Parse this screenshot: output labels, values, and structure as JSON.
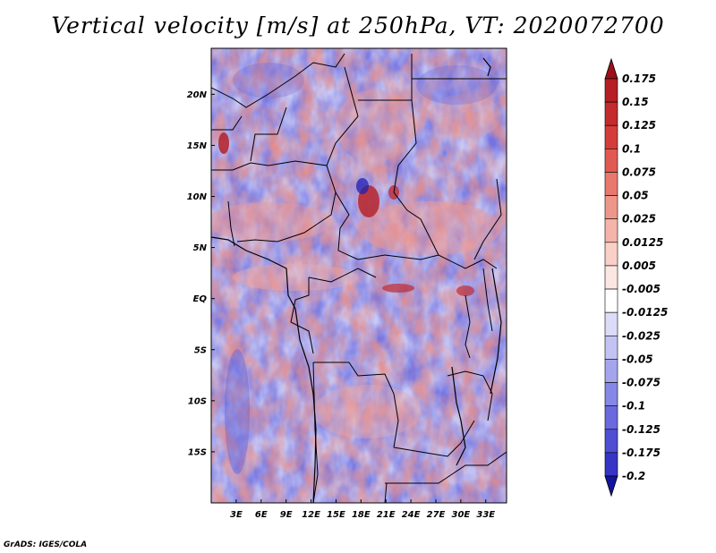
{
  "title": "Vertical velocity [m/s] at 250hPa, VT: 2020072700",
  "credit": "GrADS: IGES/COLA",
  "map": {
    "lon_range": [
      0,
      35.5
    ],
    "lat_range": [
      -20,
      24.5
    ],
    "lon_ticks": [
      {
        "value": 3,
        "label": "3E"
      },
      {
        "value": 6,
        "label": "6E"
      },
      {
        "value": 9,
        "label": "9E"
      },
      {
        "value": 12,
        "label": "12E"
      },
      {
        "value": 15,
        "label": "15E"
      },
      {
        "value": 18,
        "label": "18E"
      },
      {
        "value": 21,
        "label": "21E"
      },
      {
        "value": 24,
        "label": "24E"
      },
      {
        "value": 27,
        "label": "27E"
      },
      {
        "value": 30,
        "label": "30E"
      },
      {
        "value": 33,
        "label": "33E"
      }
    ],
    "lat_ticks": [
      {
        "value": 20,
        "label": "20N"
      },
      {
        "value": 15,
        "label": "15N"
      },
      {
        "value": 10,
        "label": "10N"
      },
      {
        "value": 5,
        "label": "5N"
      },
      {
        "value": 0,
        "label": "EQ"
      },
      {
        "value": -5,
        "label": "5S"
      },
      {
        "value": -10,
        "label": "10S"
      },
      {
        "value": -15,
        "label": "15S"
      }
    ]
  },
  "colorbar": {
    "levels": [
      {
        "label": "0.175",
        "color": "#b41e24"
      },
      {
        "label": "0.15",
        "color": "#c32b2e"
      },
      {
        "label": "0.125",
        "color": "#d43c3a"
      },
      {
        "label": "0.1",
        "color": "#e05a52"
      },
      {
        "label": "0.075",
        "color": "#e8786e"
      },
      {
        "label": "0.05",
        "color": "#ef968b"
      },
      {
        "label": "0.025",
        "color": "#f5b4a9"
      },
      {
        "label": "0.0125",
        "color": "#f9d0c7"
      },
      {
        "label": "0.005",
        "color": "#fce6e1"
      },
      {
        "label": "-0.005",
        "color": "#ffffff"
      },
      {
        "label": "-0.0125",
        "color": "#dcdcf8"
      },
      {
        "label": "-0.025",
        "color": "#c3c3f3"
      },
      {
        "label": "-0.05",
        "color": "#a5a5ee"
      },
      {
        "label": "-0.075",
        "color": "#8787e6"
      },
      {
        "label": "-0.1",
        "color": "#6a6ade"
      },
      {
        "label": "-0.125",
        "color": "#4f4fd4"
      },
      {
        "label": "-0.175",
        "color": "#3535c6"
      },
      {
        "label": "-0.2",
        "color": "#2020b0"
      }
    ],
    "top_arrow_color": "#9c1018",
    "bottom_arrow_color": "#14149c"
  }
}
